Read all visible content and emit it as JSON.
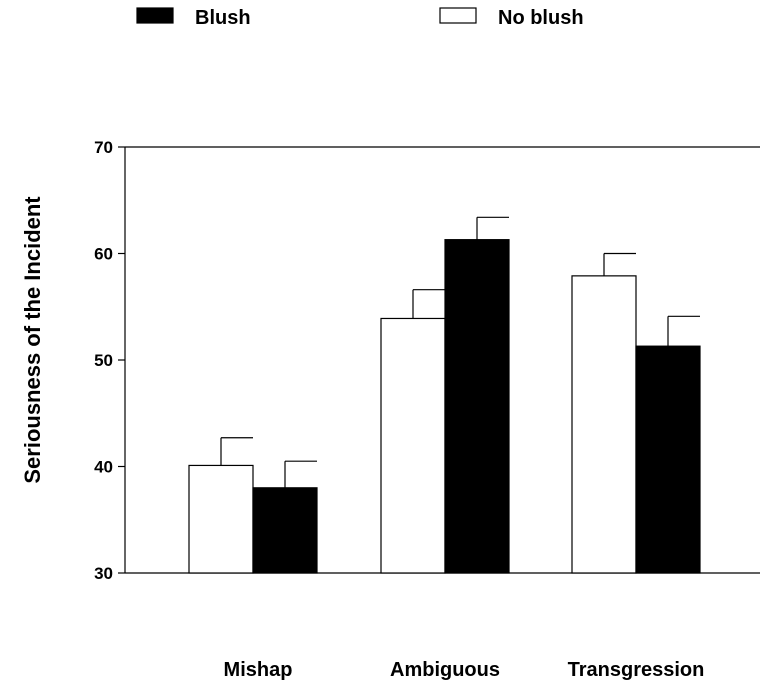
{
  "chart_data": {
    "type": "bar",
    "categories": [
      "Mishap",
      "Ambiguous",
      "Transgression"
    ],
    "series": [
      {
        "name": "No blush",
        "color": "#ffffff",
        "values": [
          40.1,
          53.9,
          57.9
        ],
        "errors": [
          2.6,
          2.7,
          2.1
        ]
      },
      {
        "name": "Blush",
        "color": "#000000",
        "values": [
          38.0,
          61.3,
          51.3
        ],
        "errors": [
          2.5,
          2.1,
          2.8
        ]
      }
    ],
    "title": "",
    "xlabel": "",
    "ylabel": "Seriousness of the Incident",
    "ylim": [
      30,
      70
    ],
    "yticks": [
      30,
      40,
      50,
      60,
      70
    ],
    "grid": false,
    "legend": {
      "placement": "top",
      "order": [
        "Blush",
        "No blush"
      ]
    }
  }
}
